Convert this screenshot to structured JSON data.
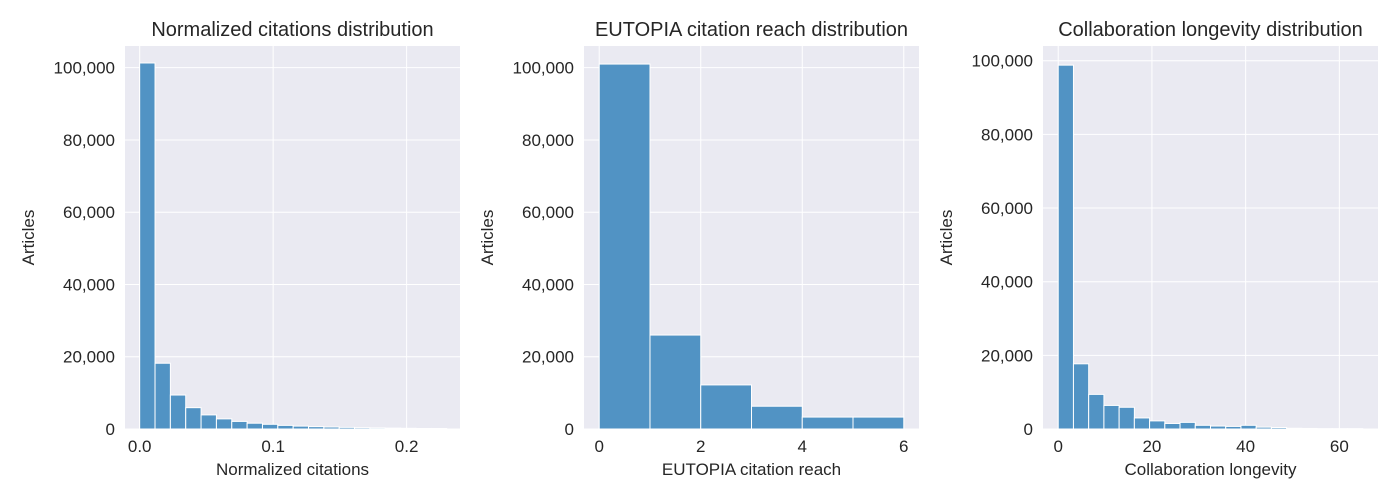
{
  "chart_data": [
    {
      "type": "bar",
      "title": "Normalized citations distribution",
      "xlabel": "Normalized citations",
      "ylabel": "Articles",
      "xlim": [
        -0.011,
        0.24
      ],
      "ylim": [
        0,
        106000
      ],
      "xticks": [
        {
          "v": 0,
          "label": "0.0"
        },
        {
          "v": 0.1,
          "label": "0.1"
        },
        {
          "v": 0.2,
          "label": "0.2"
        }
      ],
      "yticks": [
        {
          "v": 0,
          "label": "0"
        },
        {
          "v": 20000,
          "label": "20,000"
        },
        {
          "v": 40000,
          "label": "40,000"
        },
        {
          "v": 60000,
          "label": "60,000"
        },
        {
          "v": 80000,
          "label": "80,000"
        },
        {
          "v": 100000,
          "label": "100,000"
        }
      ],
      "bins": [
        {
          "x0": 0.0,
          "x1": 0.0115,
          "value": 101300
        },
        {
          "x0": 0.0115,
          "x1": 0.023,
          "value": 18200
        },
        {
          "x0": 0.023,
          "x1": 0.0345,
          "value": 9400
        },
        {
          "x0": 0.0345,
          "x1": 0.046,
          "value": 5900
        },
        {
          "x0": 0.046,
          "x1": 0.0575,
          "value": 3900
        },
        {
          "x0": 0.0575,
          "x1": 0.069,
          "value": 2800
        },
        {
          "x0": 0.069,
          "x1": 0.0805,
          "value": 2100
        },
        {
          "x0": 0.0805,
          "x1": 0.092,
          "value": 1600
        },
        {
          "x0": 0.092,
          "x1": 0.1035,
          "value": 1300
        },
        {
          "x0": 0.1035,
          "x1": 0.115,
          "value": 1000
        },
        {
          "x0": 0.115,
          "x1": 0.1265,
          "value": 800
        },
        {
          "x0": 0.1265,
          "x1": 0.138,
          "value": 650
        },
        {
          "x0": 0.138,
          "x1": 0.1495,
          "value": 550
        },
        {
          "x0": 0.1495,
          "x1": 0.161,
          "value": 450
        },
        {
          "x0": 0.161,
          "x1": 0.1725,
          "value": 350
        },
        {
          "x0": 0.1725,
          "x1": 0.184,
          "value": 300
        },
        {
          "x0": 0.184,
          "x1": 0.1955,
          "value": 250
        },
        {
          "x0": 0.1955,
          "x1": 0.207,
          "value": 200
        },
        {
          "x0": 0.207,
          "x1": 0.2185,
          "value": 150
        },
        {
          "x0": 0.2185,
          "x1": 0.23,
          "value": 150
        }
      ]
    },
    {
      "type": "bar",
      "title": "EUTOPIA citation reach distribution",
      "xlabel": "EUTOPIA citation reach",
      "ylabel": "Articles",
      "xlim": [
        -0.3,
        6.3
      ],
      "ylim": [
        0,
        106000
      ],
      "xticks": [
        {
          "v": 0,
          "label": "0"
        },
        {
          "v": 2,
          "label": "2"
        },
        {
          "v": 4,
          "label": "4"
        },
        {
          "v": 6,
          "label": "6"
        }
      ],
      "yticks": [
        {
          "v": 0,
          "label": "0"
        },
        {
          "v": 20000,
          "label": "20,000"
        },
        {
          "v": 40000,
          "label": "40,000"
        },
        {
          "v": 60000,
          "label": "60,000"
        },
        {
          "v": 80000,
          "label": "80,000"
        },
        {
          "v": 100000,
          "label": "100,000"
        }
      ],
      "bins": [
        {
          "x0": 0,
          "x1": 1,
          "value": 101000
        },
        {
          "x0": 1,
          "x1": 2,
          "value": 26000
        },
        {
          "x0": 2,
          "x1": 3,
          "value": 12200
        },
        {
          "x0": 3,
          "x1": 4,
          "value": 6300
        },
        {
          "x0": 4,
          "x1": 5,
          "value": 3300
        },
        {
          "x0": 5,
          "x1": 6,
          "value": 3300
        }
      ]
    },
    {
      "type": "bar",
      "title": "Collaboration longevity distribution",
      "xlabel": "Collaboration longevity",
      "ylabel": "Articles",
      "xlim": [
        -3.25,
        68.25
      ],
      "ylim": [
        0,
        104000
      ],
      "xticks": [
        {
          "v": 0,
          "label": "0"
        },
        {
          "v": 20,
          "label": "20"
        },
        {
          "v": 40,
          "label": "40"
        },
        {
          "v": 60,
          "label": "60"
        }
      ],
      "yticks": [
        {
          "v": 0,
          "label": "0"
        },
        {
          "v": 20000,
          "label": "20,000"
        },
        {
          "v": 40000,
          "label": "40,000"
        },
        {
          "v": 60000,
          "label": "60,000"
        },
        {
          "v": 80000,
          "label": "80,000"
        },
        {
          "v": 100000,
          "label": "100,000"
        }
      ],
      "bins": [
        {
          "x0": 0.0,
          "x1": 3.25,
          "value": 98800
        },
        {
          "x0": 3.25,
          "x1": 6.5,
          "value": 17700
        },
        {
          "x0": 6.5,
          "x1": 9.75,
          "value": 9400
        },
        {
          "x0": 9.75,
          "x1": 13.0,
          "value": 6400
        },
        {
          "x0": 13.0,
          "x1": 16.25,
          "value": 5900
        },
        {
          "x0": 16.25,
          "x1": 19.5,
          "value": 3000
        },
        {
          "x0": 19.5,
          "x1": 22.75,
          "value": 2200
        },
        {
          "x0": 22.75,
          "x1": 26.0,
          "value": 1500
        },
        {
          "x0": 26.0,
          "x1": 29.25,
          "value": 1800
        },
        {
          "x0": 29.25,
          "x1": 32.5,
          "value": 1000
        },
        {
          "x0": 32.5,
          "x1": 35.75,
          "value": 800
        },
        {
          "x0": 35.75,
          "x1": 39.0,
          "value": 700
        },
        {
          "x0": 39.0,
          "x1": 42.25,
          "value": 1000
        },
        {
          "x0": 42.25,
          "x1": 45.5,
          "value": 500
        },
        {
          "x0": 45.5,
          "x1": 48.75,
          "value": 400
        },
        {
          "x0": 48.75,
          "x1": 52.0,
          "value": 200
        },
        {
          "x0": 52.0,
          "x1": 55.25,
          "value": 150
        },
        {
          "x0": 55.25,
          "x1": 58.5,
          "value": 100
        },
        {
          "x0": 58.5,
          "x1": 61.75,
          "value": 100
        },
        {
          "x0": 61.75,
          "x1": 65.0,
          "value": 100
        }
      ]
    }
  ],
  "style": {
    "bar_color": "#5193c4",
    "plot_background": "#eaeaf2",
    "grid_color": "#ffffff"
  }
}
